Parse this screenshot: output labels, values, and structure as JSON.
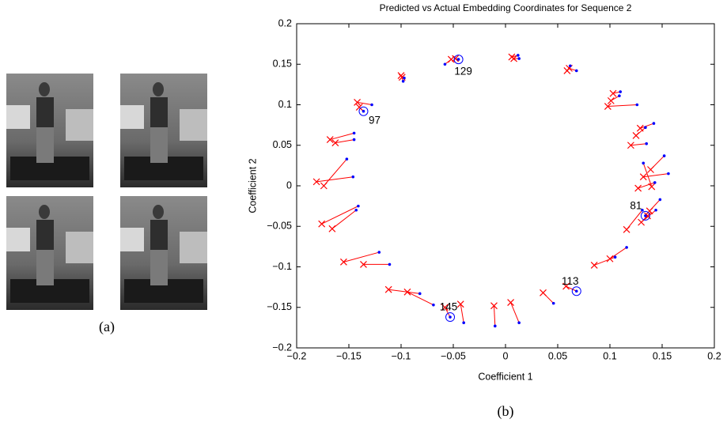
{
  "figure": {
    "caption_a": "(a)",
    "caption_b": "(b)"
  },
  "chart_data": {
    "type": "scatter",
    "title": "Predicted vs Actual Embedding Coordinates for Sequence 2",
    "x_label": "Coefficient 1",
    "y_label": "Coefficient 2",
    "xlim": [
      -0.2,
      0.2
    ],
    "ylim": [
      -0.2,
      0.2
    ],
    "xticks": [
      {
        "value": -0.2,
        "label": "−0.2"
      },
      {
        "value": -0.15,
        "label": "−0.15"
      },
      {
        "value": -0.1,
        "label": "−0.1"
      },
      {
        "value": -0.05,
        "label": "−0.05"
      },
      0,
      0.05,
      0.1,
      0.15,
      0.2
    ],
    "yticks": [
      {
        "value": -0.2,
        "label": "−0.2"
      },
      {
        "value": -0.15,
        "label": "−0.15"
      },
      {
        "value": -0.1,
        "label": "−0.1"
      },
      {
        "value": -0.05,
        "label": "−0.05"
      },
      0,
      0.05,
      0.1,
      0.15,
      0.2
    ],
    "connect_pairs": true,
    "series": [
      {
        "color": "#ff0000",
        "marker": "x",
        "x": [
          -0.1,
          -0.099,
          -0.048,
          -0.052,
          0.006,
          0.008,
          0.059,
          0.061,
          0.103,
          0.101,
          0.098,
          0.129,
          0.125,
          0.12,
          0.139,
          0.132,
          0.14,
          0.127,
          0.138,
          0.136,
          0.13,
          0.116,
          0.1,
          0.085,
          0.058,
          0.036,
          0.005,
          -0.011,
          -0.043,
          -0.058,
          -0.094,
          -0.112,
          -0.136,
          -0.155,
          -0.166,
          -0.176,
          -0.181,
          -0.174,
          -0.168,
          -0.163,
          -0.142,
          -0.14
        ],
        "y": [
          0.136,
          0.134,
          0.157,
          0.156,
          0.159,
          0.157,
          0.142,
          0.145,
          0.114,
          0.105,
          0.098,
          0.071,
          0.062,
          0.05,
          0.02,
          0.011,
          -0.001,
          -0.003,
          -0.031,
          -0.037,
          -0.045,
          -0.054,
          -0.09,
          -0.098,
          -0.124,
          -0.132,
          -0.144,
          -0.148,
          -0.146,
          -0.15,
          -0.131,
          -0.128,
          -0.097,
          -0.094,
          -0.053,
          -0.047,
          0.005,
          0.0,
          0.057,
          0.053,
          0.103,
          0.097
        ]
      },
      {
        "color": "#0000ff",
        "marker": "dot",
        "x": [
          -0.098,
          -0.097,
          -0.045,
          -0.058,
          0.012,
          0.013,
          0.062,
          0.068,
          0.11,
          0.109,
          0.126,
          0.142,
          0.134,
          0.135,
          0.152,
          0.156,
          0.132,
          0.143,
          0.148,
          0.134,
          0.144,
          0.131,
          0.116,
          0.105,
          0.068,
          0.046,
          0.013,
          -0.01,
          -0.04,
          -0.053,
          -0.069,
          -0.082,
          -0.111,
          -0.121,
          -0.143,
          -0.141,
          -0.146,
          -0.152,
          -0.145,
          -0.145,
          -0.128,
          -0.136
        ],
        "y": [
          0.129,
          0.133,
          0.156,
          0.15,
          0.161,
          0.157,
          0.148,
          0.142,
          0.116,
          0.111,
          0.1,
          0.077,
          0.072,
          0.052,
          0.037,
          0.015,
          0.028,
          0.004,
          -0.017,
          -0.037,
          -0.03,
          -0.03,
          -0.076,
          -0.088,
          -0.13,
          -0.145,
          -0.169,
          -0.173,
          -0.169,
          -0.162,
          -0.147,
          -0.133,
          -0.097,
          -0.082,
          -0.03,
          -0.025,
          0.011,
          0.033,
          0.065,
          0.057,
          0.1,
          0.092
        ]
      }
    ],
    "annotations": [
      {
        "text": "129",
        "x": -0.045,
        "y": 0.156
      },
      {
        "text": "97",
        "x": -0.136,
        "y": 0.092
      },
      {
        "text": "81",
        "x": 0.134,
        "y": -0.037
      },
      {
        "text": "113",
        "x": 0.068,
        "y": -0.13
      },
      {
        "text": "145",
        "x": -0.053,
        "y": -0.162
      }
    ]
  }
}
